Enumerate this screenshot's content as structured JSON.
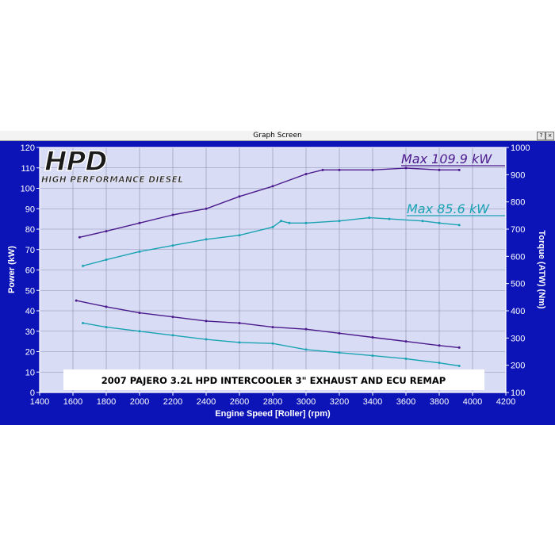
{
  "window": {
    "title": "Graph Screen",
    "help_glyph": "?",
    "close_glyph": "×"
  },
  "logo": {
    "name": "HPD",
    "tagline": "HIGH PERFORMANCE DIESEL"
  },
  "colors": {
    "frame": "#0c14b8",
    "plot_bg": "#d9dcf5",
    "grid": "#8a8fb0",
    "power_run": "#4b1a8c",
    "torque_run": "#1aa3b3"
  },
  "annotations": {
    "max_purple": "Max 109.9 kW",
    "max_teal": "Max 85.6 kW",
    "caption": "2007 PAJERO 3.2L HPD INTERCOOLER 3\" EXHAUST AND ECU REMAP"
  },
  "chart_data": {
    "type": "line",
    "title": "",
    "xlabel": "Engine Speed [Roller] (rpm)",
    "ylabel": "Power (kW)",
    "y2label": "Torque (ATW) (Nm)",
    "xlim": [
      1400,
      4200
    ],
    "ylim": [
      0,
      120
    ],
    "y2lim": [
      100,
      1000
    ],
    "xticks": [
      1400,
      1600,
      1800,
      2000,
      2200,
      2400,
      2600,
      2800,
      3000,
      3200,
      3400,
      3600,
      3800,
      4000,
      4200
    ],
    "yticks": [
      0,
      10,
      20,
      30,
      40,
      50,
      60,
      70,
      80,
      90,
      100,
      110,
      120
    ],
    "y2ticks": [
      100,
      200,
      300,
      400,
      500,
      600,
      700,
      800,
      900,
      1000
    ],
    "grid": true,
    "series": [
      {
        "axis": "power",
        "color": "#4b1a8c",
        "points": [
          [
            1640,
            76
          ],
          [
            1800,
            79
          ],
          [
            2000,
            83
          ],
          [
            2200,
            87
          ],
          [
            2400,
            90
          ],
          [
            2600,
            96
          ],
          [
            2800,
            101
          ],
          [
            3000,
            107
          ],
          [
            3100,
            109
          ],
          [
            3200,
            109
          ],
          [
            3400,
            109
          ],
          [
            3600,
            109.9
          ],
          [
            3800,
            109
          ],
          [
            3920,
            109
          ]
        ]
      },
      {
        "axis": "power",
        "color": "#1aa3b3",
        "points": [
          [
            1660,
            62
          ],
          [
            1800,
            65
          ],
          [
            2000,
            69
          ],
          [
            2200,
            72
          ],
          [
            2400,
            75
          ],
          [
            2600,
            77
          ],
          [
            2800,
            81
          ],
          [
            2850,
            84
          ],
          [
            2900,
            83
          ],
          [
            3000,
            83
          ],
          [
            3200,
            84
          ],
          [
            3380,
            85.6
          ],
          [
            3500,
            85
          ],
          [
            3700,
            84
          ],
          [
            3800,
            83
          ],
          [
            3920,
            82
          ]
        ]
      },
      {
        "axis": "power",
        "color": "#4b1a8c",
        "points": [
          [
            1620,
            45
          ],
          [
            1800,
            42
          ],
          [
            2000,
            39
          ],
          [
            2200,
            37
          ],
          [
            2400,
            35
          ],
          [
            2600,
            34
          ],
          [
            2800,
            32
          ],
          [
            3000,
            31
          ],
          [
            3200,
            29
          ],
          [
            3400,
            27
          ],
          [
            3600,
            25
          ],
          [
            3800,
            23
          ],
          [
            3920,
            22
          ]
        ]
      },
      {
        "axis": "power",
        "color": "#1aa3b3",
        "points": [
          [
            1660,
            34
          ],
          [
            1800,
            32
          ],
          [
            2000,
            30
          ],
          [
            2200,
            28
          ],
          [
            2400,
            26
          ],
          [
            2600,
            24.5
          ],
          [
            2800,
            24
          ],
          [
            3000,
            21
          ],
          [
            3200,
            19.5
          ],
          [
            3400,
            18
          ],
          [
            3600,
            16.5
          ],
          [
            3800,
            14.5
          ],
          [
            3920,
            13
          ]
        ]
      }
    ]
  }
}
